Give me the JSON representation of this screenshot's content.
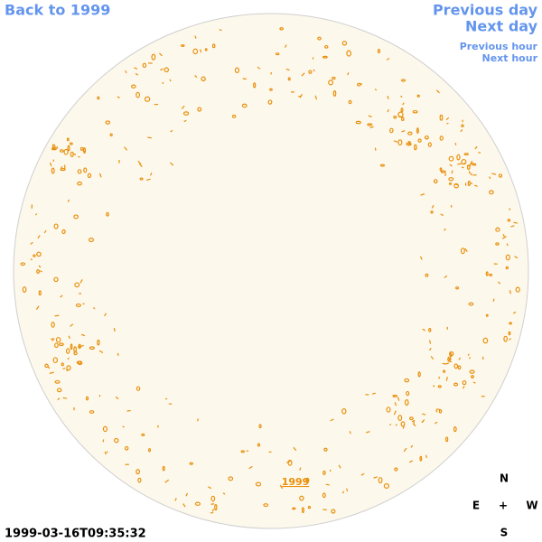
{
  "nav": {
    "back": "Back to 1999",
    "previous_day": "Previous day",
    "next_day": "Next day",
    "previous_hour": "Previous hour",
    "next_hour": "Next hour"
  },
  "disc_label": "1999",
  "timestamp": "1999-03-16T09:35:32",
  "compass": {
    "north": "N",
    "east": "E",
    "center": "+",
    "west": "W",
    "south": "S"
  }
}
